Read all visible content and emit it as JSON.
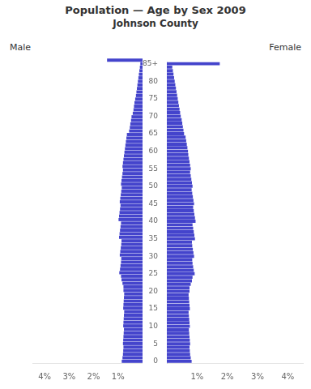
{
  "chart_data": {
    "type": "bar",
    "orientation": "horizontal",
    "title": "Population — Age by Sex 2009",
    "subtitle": "Johnson County",
    "categories": [
      "0",
      null,
      null,
      null,
      null,
      "5",
      null,
      null,
      null,
      null,
      "10",
      null,
      null,
      null,
      null,
      "15",
      null,
      null,
      null,
      null,
      "20",
      null,
      null,
      null,
      null,
      "25",
      null,
      null,
      null,
      null,
      "30",
      null,
      null,
      null,
      null,
      "35",
      null,
      null,
      null,
      null,
      "40",
      null,
      null,
      null,
      null,
      "45",
      null,
      null,
      null,
      null,
      "50",
      null,
      null,
      null,
      null,
      "55",
      null,
      null,
      null,
      null,
      "60",
      null,
      null,
      null,
      null,
      "65",
      null,
      null,
      null,
      null,
      "70",
      null,
      null,
      null,
      null,
      "75",
      null,
      null,
      null,
      null,
      "80",
      null,
      null,
      null,
      null,
      "85+"
    ],
    "series": [
      {
        "name": "Male",
        "color": "#4444cc",
        "values": [
          0.85,
          0.82,
          0.8,
          0.79,
          0.78,
          0.8,
          0.79,
          0.78,
          0.77,
          0.76,
          0.79,
          0.78,
          0.77,
          0.76,
          0.75,
          0.79,
          0.78,
          0.77,
          0.76,
          0.75,
          0.78,
          0.78,
          0.82,
          0.86,
          0.88,
          0.95,
          0.92,
          0.9,
          0.88,
          0.87,
          0.93,
          0.91,
          0.89,
          0.87,
          0.86,
          0.96,
          0.94,
          0.92,
          0.9,
          0.88,
          0.98,
          0.96,
          0.94,
          0.92,
          0.9,
          0.93,
          0.91,
          0.89,
          0.87,
          0.85,
          0.88,
          0.86,
          0.84,
          0.82,
          0.8,
          0.82,
          0.8,
          0.78,
          0.76,
          0.74,
          0.72,
          0.7,
          0.68,
          0.66,
          0.64,
          0.55,
          0.52,
          0.5,
          0.47,
          0.45,
          0.4,
          0.37,
          0.35,
          0.33,
          0.3,
          0.27,
          0.25,
          0.23,
          0.21,
          0.19,
          0.17,
          0.15,
          0.13,
          0.11,
          0.09,
          1.45
        ]
      },
      {
        "name": "Female",
        "color": "#4444cc",
        "values": [
          0.82,
          0.79,
          0.77,
          0.76,
          0.75,
          0.77,
          0.76,
          0.75,
          0.74,
          0.73,
          0.76,
          0.75,
          0.74,
          0.73,
          0.72,
          0.76,
          0.75,
          0.74,
          0.73,
          0.72,
          0.75,
          0.75,
          0.79,
          0.83,
          0.85,
          0.92,
          0.89,
          0.87,
          0.85,
          0.84,
          0.9,
          0.88,
          0.86,
          0.84,
          0.83,
          0.93,
          0.91,
          0.89,
          0.87,
          0.85,
          0.95,
          0.93,
          0.91,
          0.89,
          0.87,
          0.9,
          0.88,
          0.86,
          0.84,
          0.82,
          0.85,
          0.83,
          0.81,
          0.79,
          0.77,
          0.79,
          0.77,
          0.75,
          0.73,
          0.71,
          0.7,
          0.68,
          0.66,
          0.64,
          0.62,
          0.57,
          0.55,
          0.53,
          0.51,
          0.49,
          0.46,
          0.44,
          0.42,
          0.4,
          0.38,
          0.36,
          0.34,
          0.32,
          0.3,
          0.28,
          0.26,
          0.24,
          0.22,
          0.2,
          0.18,
          1.75
        ]
      }
    ],
    "xlim": [
      0,
      4.5
    ],
    "xticks": [
      {
        "value": 1,
        "label": "1%"
      },
      {
        "value": 2,
        "label": "2%"
      },
      {
        "value": 3,
        "label": "3%"
      },
      {
        "value": 4,
        "label": "4%"
      }
    ],
    "grid": false
  }
}
